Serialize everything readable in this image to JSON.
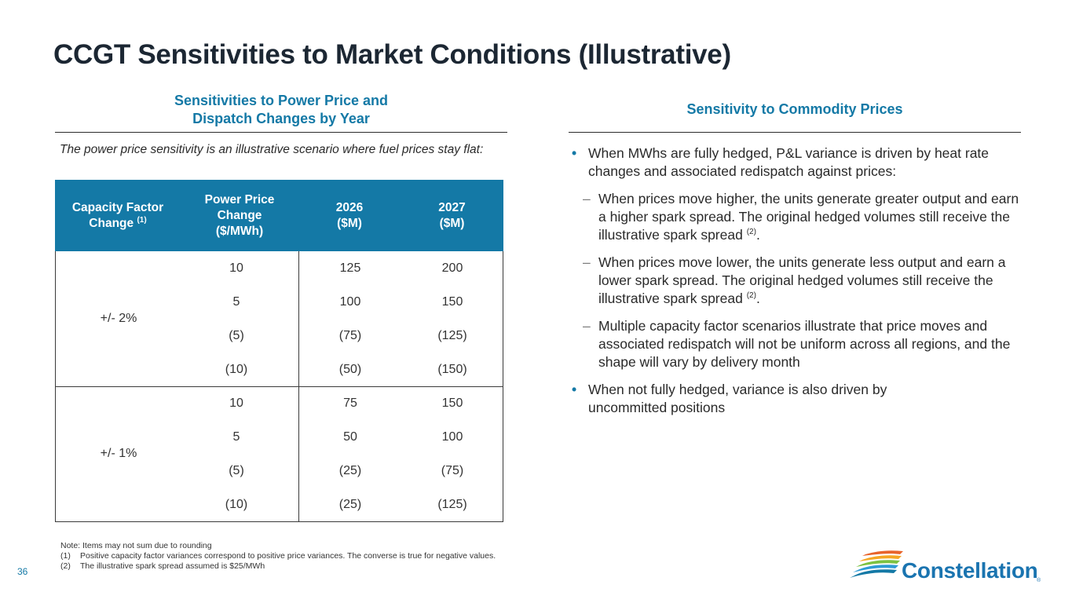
{
  "title": "CCGT Sensitivities to Market Conditions (Illustrative)",
  "left": {
    "heading_line1": "Sensitivities to Power Price and",
    "heading_line2": "Dispatch Changes by Year",
    "intro": "The power price sensitivity is an illustrative scenario where fuel prices stay flat:",
    "headers": {
      "capacity_factor": "Capacity Factor Change",
      "capacity_factor_note": "(1)",
      "power_price_l1": "Power Price",
      "power_price_l2": "Change",
      "power_price_l3": "($/MWh)",
      "y2026_l1": "2026",
      "y2026_l2": "($M)",
      "y2027_l1": "2027",
      "y2027_l2": "($M)"
    },
    "groups": [
      {
        "label": "+/- 2%",
        "rows": [
          {
            "price": "10",
            "y2026": "125",
            "y2027": "200"
          },
          {
            "price": "5",
            "y2026": "100",
            "y2027": "150"
          },
          {
            "price": "(5)",
            "y2026": "(75)",
            "y2027": "(125)"
          },
          {
            "price": "(10)",
            "y2026": "(50)",
            "y2027": "(150)"
          }
        ]
      },
      {
        "label": "+/- 1%",
        "rows": [
          {
            "price": "10",
            "y2026": "75",
            "y2027": "150"
          },
          {
            "price": "5",
            "y2026": "50",
            "y2027": "100"
          },
          {
            "price": "(5)",
            "y2026": "(25)",
            "y2027": "(75)"
          },
          {
            "price": "(10)",
            "y2026": "(25)",
            "y2027": "(125)"
          }
        ]
      }
    ]
  },
  "right": {
    "heading": "Sensitivity to Commodity Prices",
    "bullet1": "When MWhs are fully hedged, P&L variance is driven by heat rate changes and associated redispatch against prices:",
    "sub1_a": "When prices move higher, the units generate greater output and earn a higher spark spread. The original hedged volumes still receive the illustrative spark spread",
    "sub2_a": "When prices move lower, the units generate less output and earn a lower spark spread. The original hedged volumes still receive the illustrative spark spread",
    "sub_note": "(2)",
    "sub3": "Multiple capacity factor scenarios illustrate that price moves and associated redispatch will not be uniform across all regions, and the shape will vary by delivery month",
    "bullet2": "When not fully hedged, variance is also driven by uncommitted positions"
  },
  "notes": {
    "main": "Note: Items may not sum due to rounding",
    "n1_key": "(1)",
    "n1": "Positive capacity factor variances correspond to positive price variances. The converse is true for negative values.",
    "n2_key": "(2)",
    "n2": "The illustrative spark spread assumed is $25/MWh"
  },
  "page_number": "36",
  "logo": {
    "name": "Constellation",
    "reg": "®",
    "colors": [
      "#1479a6",
      "#2e9bd6",
      "#7cc242",
      "#f5a623",
      "#e8632a"
    ]
  }
}
